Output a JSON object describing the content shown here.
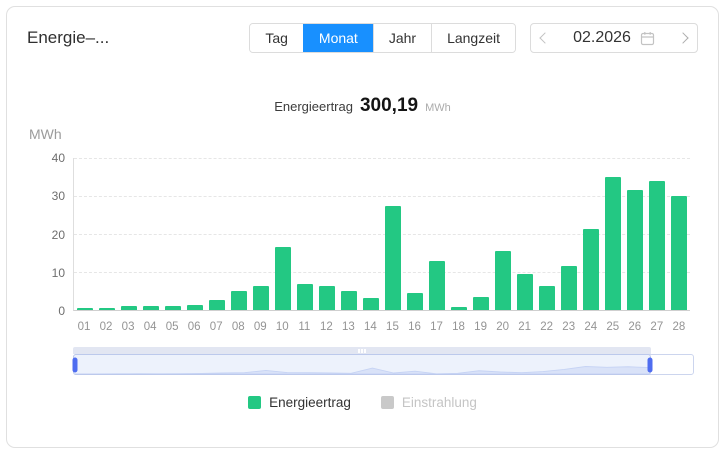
{
  "card": {
    "title": "Energie–..."
  },
  "tabs": {
    "items": [
      {
        "label": "Tag"
      },
      {
        "label": "Monat"
      },
      {
        "label": "Jahr"
      },
      {
        "label": "Langzeit"
      }
    ],
    "active_index": 1,
    "active_color": "#1890ff"
  },
  "date_picker": {
    "value": "02.2026"
  },
  "summary": {
    "label": "Energieertrag",
    "value": "300,19",
    "unit": "MWh"
  },
  "chart_data": {
    "type": "bar",
    "unit_label": "MWh",
    "categories": [
      "01",
      "02",
      "03",
      "04",
      "05",
      "06",
      "07",
      "08",
      "09",
      "10",
      "11",
      "12",
      "13",
      "14",
      "15",
      "16",
      "17",
      "18",
      "19",
      "20",
      "21",
      "22",
      "23",
      "24",
      "25",
      "26",
      "27",
      "28"
    ],
    "series": [
      {
        "name": "Energieertrag",
        "color": "#23c883",
        "values": [
          0.4,
          0.6,
          1.0,
          1.1,
          1.0,
          1.3,
          2.7,
          5.0,
          6.2,
          16.5,
          6.8,
          6.2,
          5.0,
          3.2,
          27.4,
          4.6,
          13.0,
          0.9,
          3.3,
          15.4,
          9.4,
          6.2,
          11.6,
          21.3,
          35.1,
          31.5,
          33.9,
          29.9
        ]
      },
      {
        "name": "Einstrahlung",
        "color": "#c9c9c9",
        "hidden": true,
        "values": []
      }
    ],
    "ylim": [
      0,
      40
    ],
    "yticks": [
      0,
      10,
      20,
      30,
      40
    ],
    "grid": "horizontal-dashed",
    "legend_position": "bottom",
    "total": "300,19 MWh"
  },
  "slider": {
    "selection_percent": 93
  },
  "legend": {
    "items": [
      {
        "label": "Energieertrag",
        "color": "#23c883",
        "active": true
      },
      {
        "label": "Einstrahlung",
        "color": "#c9c9c9",
        "active": false
      }
    ]
  }
}
